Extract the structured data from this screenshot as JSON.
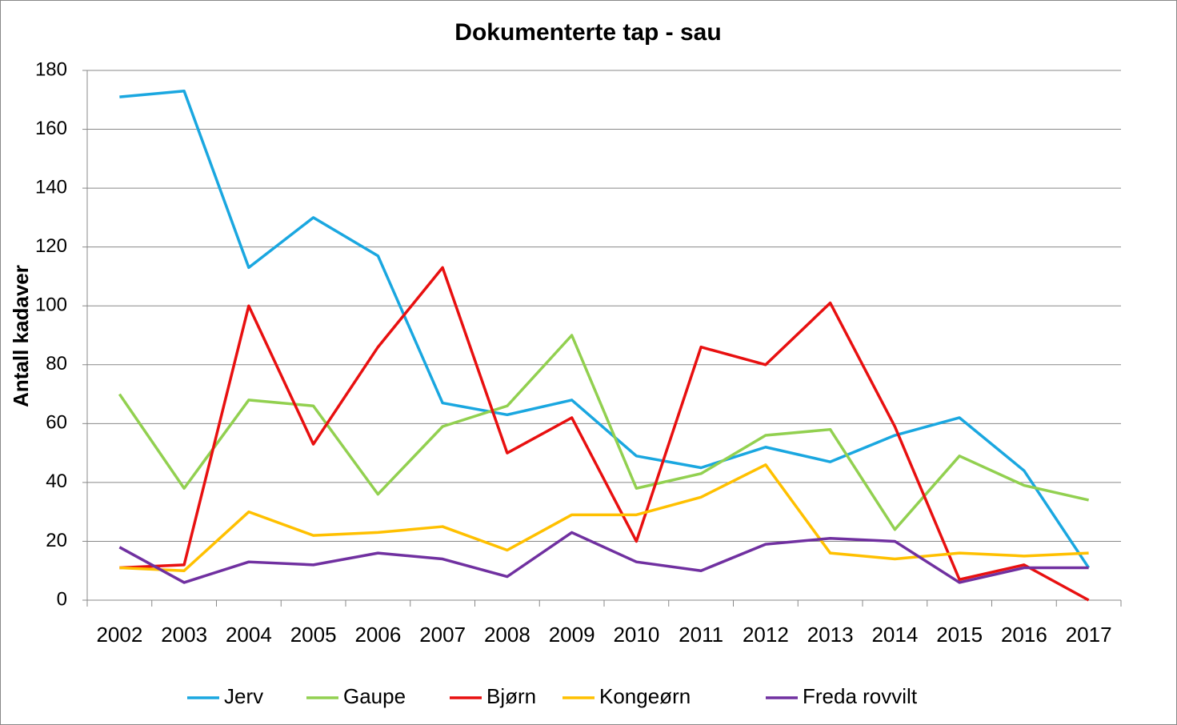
{
  "chart_data": {
    "type": "line",
    "title": "Dokumenterte tap - sau",
    "y_label": "Antall kadaver",
    "categories": [
      "2002",
      "2003",
      "2004",
      "2005",
      "2006",
      "2007",
      "2008",
      "2009",
      "2010",
      "2011",
      "2012",
      "2013",
      "2014",
      "2015",
      "2016",
      "2017"
    ],
    "series": [
      {
        "name": "Jerv",
        "color": "#1aa7e0",
        "values": [
          171,
          173,
          113,
          130,
          117,
          67,
          63,
          68,
          49,
          45,
          52,
          47,
          56,
          62,
          44,
          11
        ]
      },
      {
        "name": "Gaupe",
        "color": "#92d050",
        "values": [
          70,
          38,
          68,
          66,
          36,
          59,
          66,
          90,
          38,
          43,
          56,
          58,
          24,
          49,
          39,
          34
        ]
      },
      {
        "name": "Bjørn",
        "color": "#e81010",
        "values": [
          11,
          12,
          100,
          53,
          86,
          113,
          50,
          62,
          20,
          86,
          80,
          101,
          59,
          7,
          12,
          0
        ]
      },
      {
        "name": "Kongeørn",
        "color": "#ffc000",
        "values": [
          11,
          10,
          30,
          22,
          23,
          25,
          17,
          29,
          29,
          35,
          46,
          16,
          14,
          16,
          15,
          16
        ]
      },
      {
        "name": "Freda rovvilt",
        "color": "#7030a0",
        "values": [
          18,
          6,
          13,
          12,
          16,
          14,
          8,
          23,
          13,
          10,
          19,
          21,
          20,
          6,
          11,
          11
        ]
      }
    ],
    "ylim": [
      0,
      180
    ],
    "yticks": [
      0,
      20,
      40,
      60,
      80,
      100,
      120,
      140,
      160,
      180
    ],
    "grid": true
  }
}
